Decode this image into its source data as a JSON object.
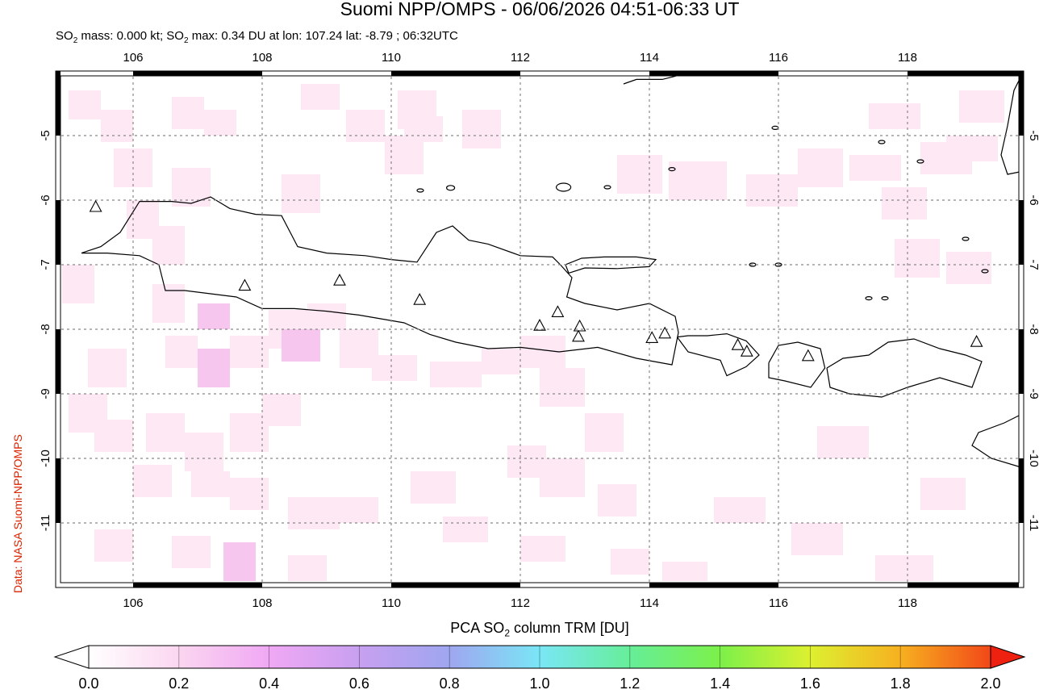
{
  "header": {
    "title": "Suomi NPP/OMPS - 06/06/2026 04:51-06:33 UT",
    "subtitle_pre": "SO",
    "subtitle_sub": "2",
    "subtitle_mid": " mass: 0.000 kt; SO",
    "subtitle_sub2": "2",
    "subtitle_post": " max: 0.34 DU at lon: 107.24 lat: -8.79 ; 06:32UTC"
  },
  "credit": "Data: NASA Suomi-NPP/OMPS",
  "map": {
    "lon_range": [
      104.8,
      119.8
    ],
    "lat_range": [
      -12.0,
      -4.0
    ],
    "lon_ticks": [
      "106",
      "108",
      "110",
      "112",
      "114",
      "116",
      "118"
    ],
    "lat_ticks": [
      "-5",
      "-6",
      "-7",
      "-8",
      "-9",
      "-10",
      "-11"
    ],
    "volcano_markers": [
      {
        "lon": 105.42,
        "lat": -6.1
      },
      {
        "lon": 107.73,
        "lat": -7.32
      },
      {
        "lon": 109.2,
        "lat": -7.24
      },
      {
        "lon": 110.44,
        "lat": -7.54
      },
      {
        "lon": 112.3,
        "lat": -7.94
      },
      {
        "lon": 112.58,
        "lat": -7.73
      },
      {
        "lon": 112.92,
        "lat": -7.95
      },
      {
        "lon": 112.9,
        "lat": -8.11
      },
      {
        "lon": 114.04,
        "lat": -8.13
      },
      {
        "lon": 114.24,
        "lat": -8.06
      },
      {
        "lon": 115.37,
        "lat": -8.24
      },
      {
        "lon": 115.51,
        "lat": -8.34
      },
      {
        "lon": 116.46,
        "lat": -8.41
      },
      {
        "lon": 119.07,
        "lat": -8.19
      }
    ],
    "colors": {
      "coast": "#000000",
      "grid": "#888888",
      "so2_low": "#fde8f4",
      "so2_mid": "#f7c6ef"
    }
  },
  "colorbar": {
    "label_pre": "PCA SO",
    "label_sub": "2",
    "label_post": " column TRM [DU]",
    "ticks": [
      "0.0",
      "0.2",
      "0.4",
      "0.6",
      "0.8",
      "1.0",
      "1.2",
      "1.4",
      "1.6",
      "1.8",
      "2.0"
    ],
    "colors": [
      "#ffffff",
      "#fbd6f0",
      "#f0a8f4",
      "#c8a0f0",
      "#9fa6f0",
      "#7ae6f6",
      "#66ee99",
      "#7cf04a",
      "#ddf030",
      "#f7b020",
      "#f24818",
      "#ee2010"
    ]
  }
}
